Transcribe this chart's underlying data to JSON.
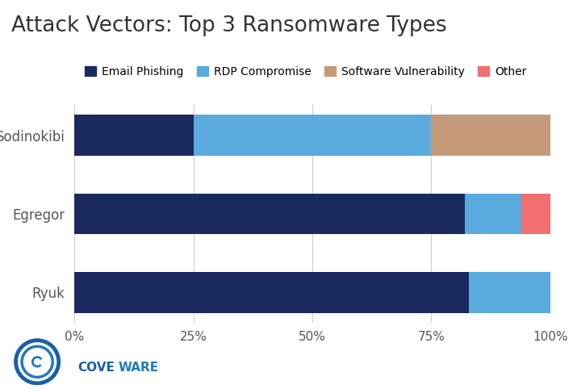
{
  "title": "Attack Vectors: Top 3 Ransomware Types",
  "categories": [
    "Sodinokibi",
    "Egregor",
    "Ryuk"
  ],
  "series": [
    {
      "label": "Email Phishing",
      "color": "#1a2a5e",
      "values": [
        0.25,
        0.82,
        0.83
      ]
    },
    {
      "label": "RDP Compromise",
      "color": "#5baade",
      "values": [
        0.5,
        0.12,
        0.17
      ]
    },
    {
      "label": "Software Vulnerability",
      "color": "#c49a7a",
      "values": [
        0.25,
        0.0,
        0.0
      ]
    },
    {
      "label": "Other",
      "color": "#f07070",
      "values": [
        0.0,
        0.06,
        0.0
      ]
    }
  ],
  "xlim": [
    0,
    1.0
  ],
  "xtick_labels": [
    "0%",
    "25%",
    "50%",
    "75%",
    "100%"
  ],
  "xtick_vals": [
    0,
    0.25,
    0.5,
    0.75,
    1.0
  ],
  "background_color": "#ffffff",
  "grid_color": "#cccccc",
  "title_fontsize": 19,
  "label_fontsize": 12,
  "tick_fontsize": 11,
  "bar_height": 0.52,
  "logo_text_cove": "COVE",
  "logo_text_ware": "WARE",
  "logo_color_dark": "#1a5fa8",
  "logo_color_light": "#2178c4"
}
